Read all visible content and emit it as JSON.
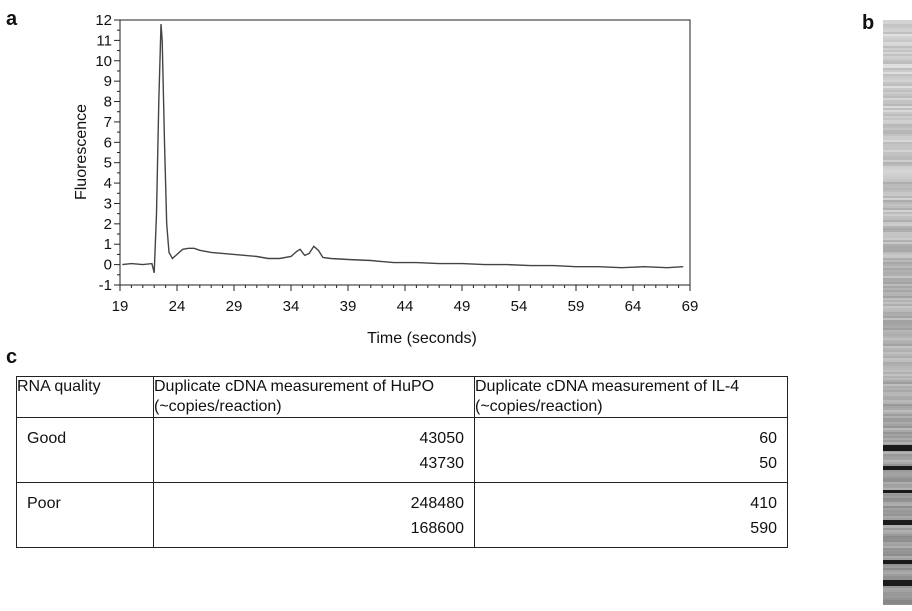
{
  "panels": {
    "a": "a",
    "b": "b",
    "c": "c"
  },
  "chart_data": {
    "type": "line",
    "xlabel": "Time (seconds)",
    "ylabel": "Fluorescence",
    "xlim": [
      19,
      69
    ],
    "ylim": [
      -1,
      12
    ],
    "xticks": [
      19,
      24,
      29,
      34,
      39,
      44,
      49,
      54,
      59,
      64,
      69
    ],
    "yticks": [
      12,
      11,
      10,
      9,
      8,
      7,
      6,
      5,
      4,
      3,
      2,
      1,
      0,
      -1
    ],
    "xtick_labels": [
      "19",
      "24",
      "29",
      "34",
      "39",
      "44",
      "49",
      "54",
      "59",
      "64",
      "69"
    ],
    "ytick_labels": [
      "12",
      "11",
      "10",
      "9",
      "8",
      "7",
      "6",
      "5",
      "4",
      "3",
      "2",
      "1",
      "0",
      "-1"
    ],
    "grid": false,
    "series": [
      {
        "color": "#444444",
        "x": [
          19.2,
          20.0,
          21.0,
          21.8,
          22.0,
          22.2,
          22.4,
          22.6,
          22.7,
          22.9,
          23.1,
          23.3,
          23.6,
          24.0,
          24.5,
          25.0,
          25.5,
          26.0,
          27.0,
          28.0,
          29.0,
          30.0,
          31.0,
          32.0,
          33.0,
          34.0,
          34.5,
          34.8,
          35.2,
          35.6,
          36.0,
          36.4,
          36.8,
          37.5,
          39.0,
          41.0,
          43.0,
          45.0,
          47.0,
          49.0,
          51.0,
          53.0,
          55.0,
          57.0,
          59.0,
          61.0,
          63.0,
          65.0,
          67.0,
          68.4
        ],
        "y": [
          0.0,
          0.05,
          0.0,
          0.05,
          -0.4,
          2.5,
          8.0,
          11.8,
          11.0,
          6.0,
          2.0,
          0.6,
          0.3,
          0.5,
          0.75,
          0.8,
          0.8,
          0.7,
          0.6,
          0.55,
          0.5,
          0.45,
          0.4,
          0.3,
          0.3,
          0.4,
          0.65,
          0.75,
          0.45,
          0.55,
          0.9,
          0.7,
          0.35,
          0.3,
          0.25,
          0.2,
          0.1,
          0.1,
          0.05,
          0.05,
          0.0,
          0.0,
          -0.05,
          -0.05,
          -0.1,
          -0.1,
          -0.15,
          -0.1,
          -0.15,
          -0.1
        ]
      }
    ]
  },
  "table": {
    "headers": [
      "RNA quality",
      "Duplicate cDNA measurement of HuPO (~copies/reaction)",
      "Duplicate cDNA measurement of IL-4 (~copies/reaction)"
    ],
    "rows": [
      {
        "quality": "Good",
        "hupo": [
          "43050",
          "43730"
        ],
        "il4": [
          "60",
          "50"
        ]
      },
      {
        "quality": "Poor",
        "hupo": [
          "248480",
          "168600"
        ],
        "il4": [
          "410",
          "590"
        ]
      }
    ]
  },
  "gel": {
    "base_color": "#d6d6d6",
    "band_color": "#1a1a1a"
  }
}
